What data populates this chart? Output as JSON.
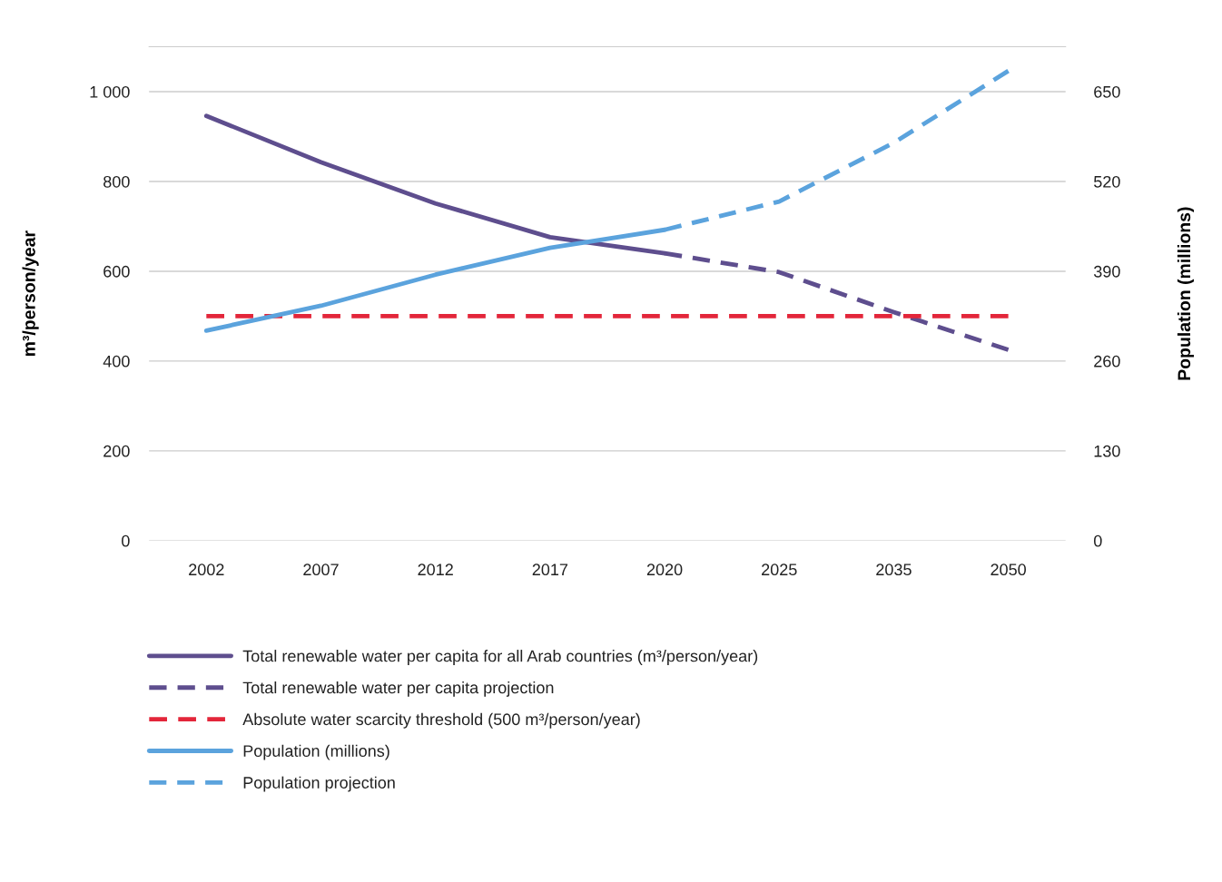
{
  "chart_data": {
    "type": "line",
    "categories": [
      "2002",
      "2007",
      "2012",
      "2017",
      "2020",
      "2025",
      "2035",
      "2050"
    ],
    "ylabel": "m³/person/year",
    "y2label": "Population (millions)",
    "ylim": [
      0,
      1100
    ],
    "yticks": [
      0,
      200,
      400,
      600,
      800,
      {
        "value": 1000,
        "label": "1 000"
      }
    ],
    "y2lim": [
      0,
      715
    ],
    "y2ticks": [
      0,
      130,
      260,
      390,
      520,
      650
    ],
    "grid": "y",
    "legend": "bottom",
    "marker": "none",
    "series": [
      {
        "name": "Total renewable water per capita for all Arab countries (m³/person/year)",
        "color": "#5e4e8e",
        "line_style": "solid",
        "values": [
          946,
          843,
          751,
          676,
          640,
          null,
          null,
          null
        ]
      },
      {
        "name": "Total renewable water per capita projection",
        "color": "#5e4e8e",
        "line_style": "dashed",
        "values": [
          null,
          null,
          null,
          null,
          640,
          598,
          509,
          425
        ]
      },
      {
        "name": "Absolute water scarcity threshold (500 m³/person/year)",
        "color": "#e3263a",
        "line_style": "dashed",
        "values": [
          500,
          500,
          500,
          500,
          500,
          500,
          500,
          500
        ]
      },
      {
        "name": "Population (millions)",
        "color": "#5ba3dd",
        "line_style": "solid",
        "axis": "y2",
        "values": [
          304,
          340,
          385,
          424,
          450,
          null,
          null,
          null
        ]
      },
      {
        "name": "Population projection",
        "color": "#5ba3dd",
        "line_style": "dashed",
        "axis": "y2",
        "values": [
          null,
          null,
          null,
          null,
          450,
          491,
          576,
          680
        ]
      }
    ]
  }
}
